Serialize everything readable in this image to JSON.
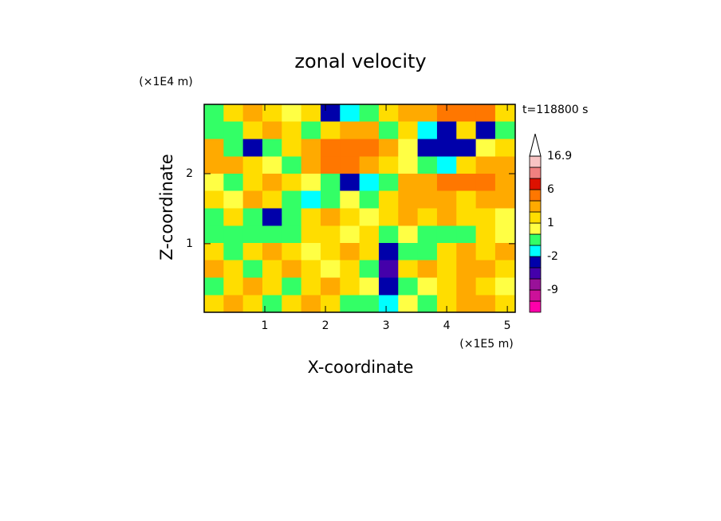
{
  "chart_data": {
    "type": "contour",
    "title": "zonal velocity",
    "x_label": "X-coordinate",
    "y_label": "Z-coordinate",
    "x_unit": "(×1E5 m)",
    "y_unit": "(×1E4 m)",
    "annotation": "t=118800 s",
    "xlim": [
      0,
      5.13
    ],
    "ylim": [
      0.02,
      2.99
    ],
    "xticks": [
      1,
      2,
      3,
      4,
      5
    ],
    "yticks": [
      1,
      2
    ],
    "x": [
      0.16,
      0.48,
      0.8,
      1.12,
      1.44,
      1.76,
      2.08,
      2.4,
      2.72,
      3.04,
      3.36,
      3.68,
      4.0,
      4.32,
      4.64,
      4.96
    ],
    "z": [
      2.87,
      2.62,
      2.37,
      2.12,
      1.88,
      1.63,
      1.38,
      1.13,
      0.89,
      0.64,
      0.39,
      0.14
    ],
    "values": [
      [
        -0.5,
        1,
        2,
        1,
        0.5,
        1,
        -3,
        -2,
        -1,
        1,
        2,
        3,
        4,
        5,
        4,
        1
      ],
      [
        -1,
        -0.5,
        1,
        2,
        1,
        -1,
        1,
        2,
        2,
        -1,
        1,
        -2,
        -4,
        1,
        -3,
        -1
      ],
      [
        2,
        -1,
        -3,
        -1,
        1,
        2,
        4,
        5,
        4,
        2,
        0.5,
        -4,
        -3,
        -4,
        0.5,
        1
      ],
      [
        3,
        2,
        1,
        0.5,
        -1,
        2,
        4,
        4,
        3,
        1,
        0.5,
        -1,
        -2,
        1,
        2,
        3
      ],
      [
        0.5,
        -1,
        1,
        2,
        1,
        0.5,
        -1,
        -4,
        -2,
        -1,
        2,
        3,
        4,
        5,
        4,
        3
      ],
      [
        1,
        0.5,
        2,
        1,
        -1,
        -2,
        -1,
        0.5,
        -1,
        1,
        2,
        3,
        2,
        1,
        2,
        3
      ],
      [
        -0.5,
        1,
        -1,
        -3,
        -1,
        1,
        2,
        1,
        0.5,
        1,
        2,
        1,
        2,
        1,
        1,
        0.5
      ],
      [
        -0.5,
        -1,
        -1,
        -0.5,
        -1,
        1,
        1,
        0.5,
        1,
        -0.5,
        0.5,
        -1,
        -1,
        -0.5,
        1,
        0.5
      ],
      [
        1,
        -0.5,
        1,
        2,
        1,
        0.5,
        1,
        2,
        1,
        -4,
        -1,
        -0.5,
        1,
        2,
        1,
        2
      ],
      [
        2,
        1,
        -0.5,
        1,
        2,
        1,
        0.5,
        1,
        -0.5,
        -5,
        1,
        2,
        1,
        3,
        2,
        1
      ],
      [
        -1,
        1,
        2,
        1,
        -0.5,
        1,
        2,
        1,
        0.5,
        -3,
        -1,
        0.5,
        1,
        2,
        1,
        0.5
      ],
      [
        1,
        2,
        1,
        -0.5,
        1,
        2,
        1,
        -0.5,
        -1,
        -2,
        0.5,
        -0.5,
        1,
        2,
        3,
        1
      ]
    ],
    "levels": [
      -15,
      -12,
      -9,
      -6,
      -4,
      -2,
      -1,
      0,
      1,
      2,
      4,
      6,
      9,
      12,
      16.9
    ],
    "colors": [
      "#ff00aa",
      "#cc1199",
      "#991199",
      "#4400aa",
      "#0000aa",
      "#00ffff",
      "#33ff66",
      "#ffff44",
      "#ffdd00",
      "#ffaa00",
      "#ff7700",
      "#dd1100",
      "#f08080",
      "#f8c4c4"
    ],
    "over_color": "#ffffff",
    "colorbar_ticks": [
      -9,
      -2,
      1,
      6,
      16.9
    ]
  }
}
